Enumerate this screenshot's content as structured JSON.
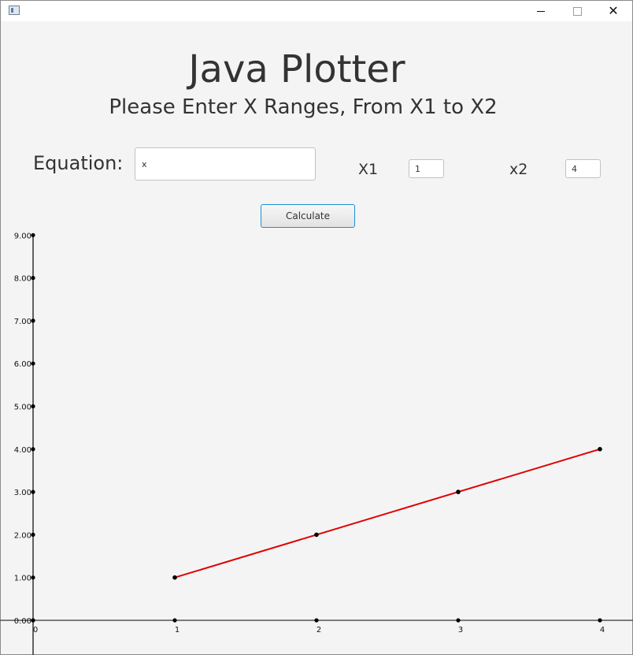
{
  "window": {
    "controls": {
      "minimize": "minimize-icon",
      "maximize": "maximize-icon",
      "close": "close-icon"
    }
  },
  "header": {
    "title": "Java Plotter",
    "subtitle": "Please Enter X Ranges, From X1 to X2"
  },
  "form": {
    "equation_label": "Equation:",
    "equation_value": "x",
    "x1_label": "X1",
    "x1_value": "1",
    "x2_label": "x2",
    "x2_value": "4",
    "calculate_label": "Calculate"
  },
  "colors": {
    "line": "#e00000",
    "point": "#000000",
    "axis": "#333333",
    "button_border": "#1e8fd8"
  },
  "chart_data": {
    "type": "line",
    "title": "",
    "xlabel": "",
    "ylabel": "",
    "x": [
      1,
      2,
      3,
      4
    ],
    "series": [
      {
        "values": [
          1,
          2,
          3,
          4
        ]
      }
    ],
    "xlim": [
      0,
      4
    ],
    "ylim": [
      0,
      9
    ],
    "x_ticks": [
      "0",
      "1",
      "2",
      "3",
      "4"
    ],
    "y_ticks": [
      "0.00",
      "1.00",
      "2.00",
      "3.00",
      "4.00",
      "5.00",
      "6.00",
      "7.00",
      "8.00",
      "9.00"
    ],
    "grid": false
  }
}
